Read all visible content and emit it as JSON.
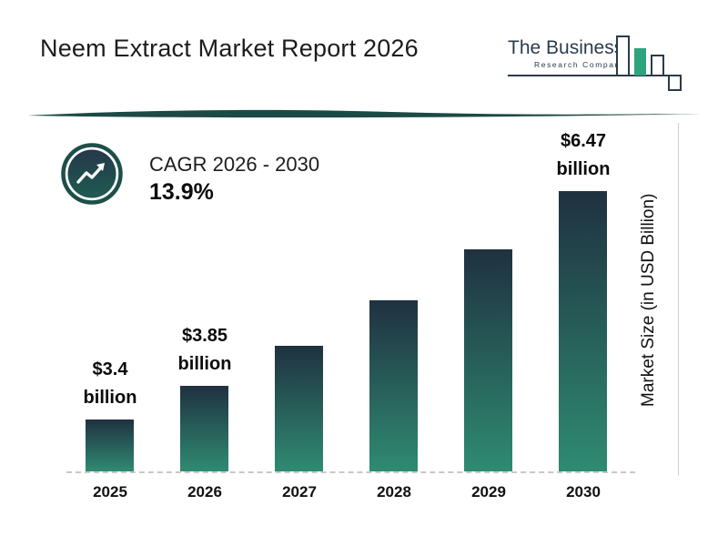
{
  "header": {
    "title": "Neem Extract Market Report 2026",
    "logo": {
      "line1": "The Business",
      "line2": "Research Company"
    }
  },
  "cagr": {
    "label": "CAGR 2026 - 2030",
    "value": "13.9%"
  },
  "chart_data": {
    "type": "bar",
    "title": "Neem Extract Market Report 2026",
    "categories": [
      "2025",
      "2026",
      "2027",
      "2028",
      "2029",
      "2030"
    ],
    "values": [
      3.4,
      3.85,
      4.39,
      5.0,
      5.69,
      6.47
    ],
    "ylabel": "Market Size (in USD Billion)",
    "ylim": [
      2.7,
      7.0
    ],
    "grid": false,
    "legend": "none",
    "annotations": [
      {
        "index": 0,
        "lines": [
          "$3.4",
          "billion"
        ]
      },
      {
        "index": 1,
        "lines": [
          "$3.85",
          "billion"
        ]
      },
      {
        "index": 5,
        "lines": [
          "$6.47",
          "billion"
        ]
      }
    ],
    "colors": {
      "bar_top": "#1F3140",
      "bar_bottom": "#2F8B72",
      "divider": "#1C4A45",
      "logo_navy": "#2A3B4D",
      "logo_green": "#2DA37E"
    }
  }
}
